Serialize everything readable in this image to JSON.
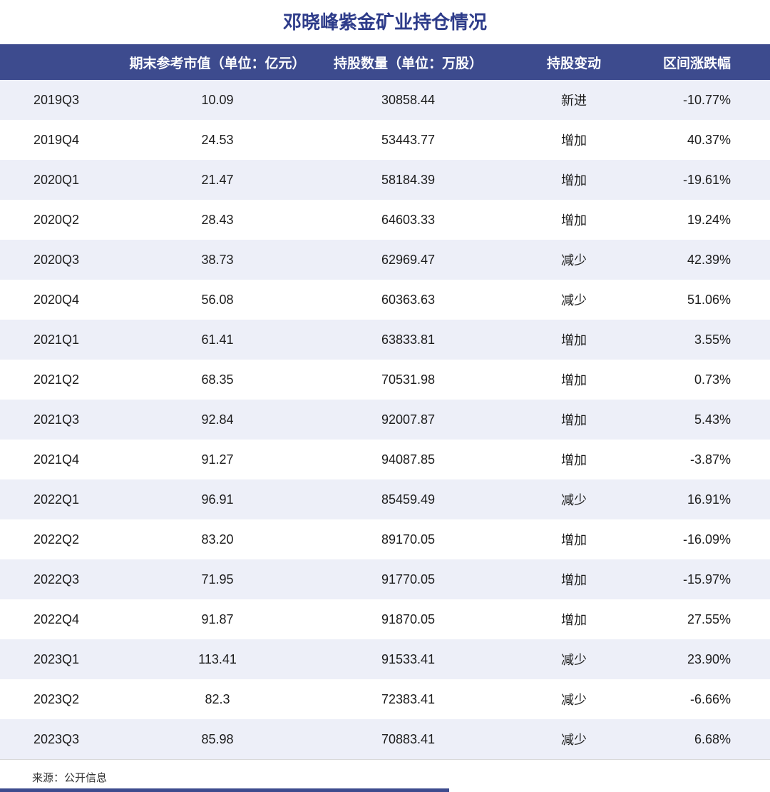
{
  "title": "邓晓峰紫金矿业持仓情况",
  "source": "来源：公开信息",
  "colors": {
    "header_bg": "#3d4b8e",
    "title_text": "#2e3c8a",
    "row_alt_bg": "#edeff8",
    "header_text": "#ffffff",
    "bottom_bar": "#3d4b8e"
  },
  "chart_data": {
    "type": "table",
    "title": "邓晓峰紫金矿业持仓情况",
    "columns": [
      "",
      "期末参考市值（单位：亿元）",
      "持股数量（单位：万股）",
      "持股变动",
      "区间涨跌幅"
    ],
    "rows": [
      [
        "2019Q3",
        "10.09",
        "30858.44",
        "新进",
        "-10.77%"
      ],
      [
        "2019Q4",
        "24.53",
        "53443.77",
        "增加",
        "40.37%"
      ],
      [
        "2020Q1",
        "21.47",
        "58184.39",
        "增加",
        "-19.61%"
      ],
      [
        "2020Q2",
        "28.43",
        "64603.33",
        "增加",
        "19.24%"
      ],
      [
        "2020Q3",
        "38.73",
        "62969.47",
        "减少",
        "42.39%"
      ],
      [
        "2020Q4",
        "56.08",
        "60363.63",
        "减少",
        "51.06%"
      ],
      [
        "2021Q1",
        "61.41",
        "63833.81",
        "增加",
        "3.55%"
      ],
      [
        "2021Q2",
        "68.35",
        "70531.98",
        "增加",
        "0.73%"
      ],
      [
        "2021Q3",
        "92.84",
        "92007.87",
        "增加",
        "5.43%"
      ],
      [
        "2021Q4",
        "91.27",
        "94087.85",
        "增加",
        "-3.87%"
      ],
      [
        "2022Q1",
        "96.91",
        "85459.49",
        "减少",
        "16.91%"
      ],
      [
        "2022Q2",
        "83.20",
        "89170.05",
        "增加",
        "-16.09%"
      ],
      [
        "2022Q3",
        "71.95",
        "91770.05",
        "增加",
        "-15.97%"
      ],
      [
        "2022Q4",
        "91.87",
        "91870.05",
        "增加",
        "27.55%"
      ],
      [
        "2023Q1",
        "113.41",
        "91533.41",
        "减少",
        "23.90%"
      ],
      [
        "2023Q2",
        "82.3",
        "72383.41",
        "减少",
        "-6.66%"
      ],
      [
        "2023Q3",
        "85.98",
        "70883.41",
        "减少",
        "6.68%"
      ]
    ]
  }
}
